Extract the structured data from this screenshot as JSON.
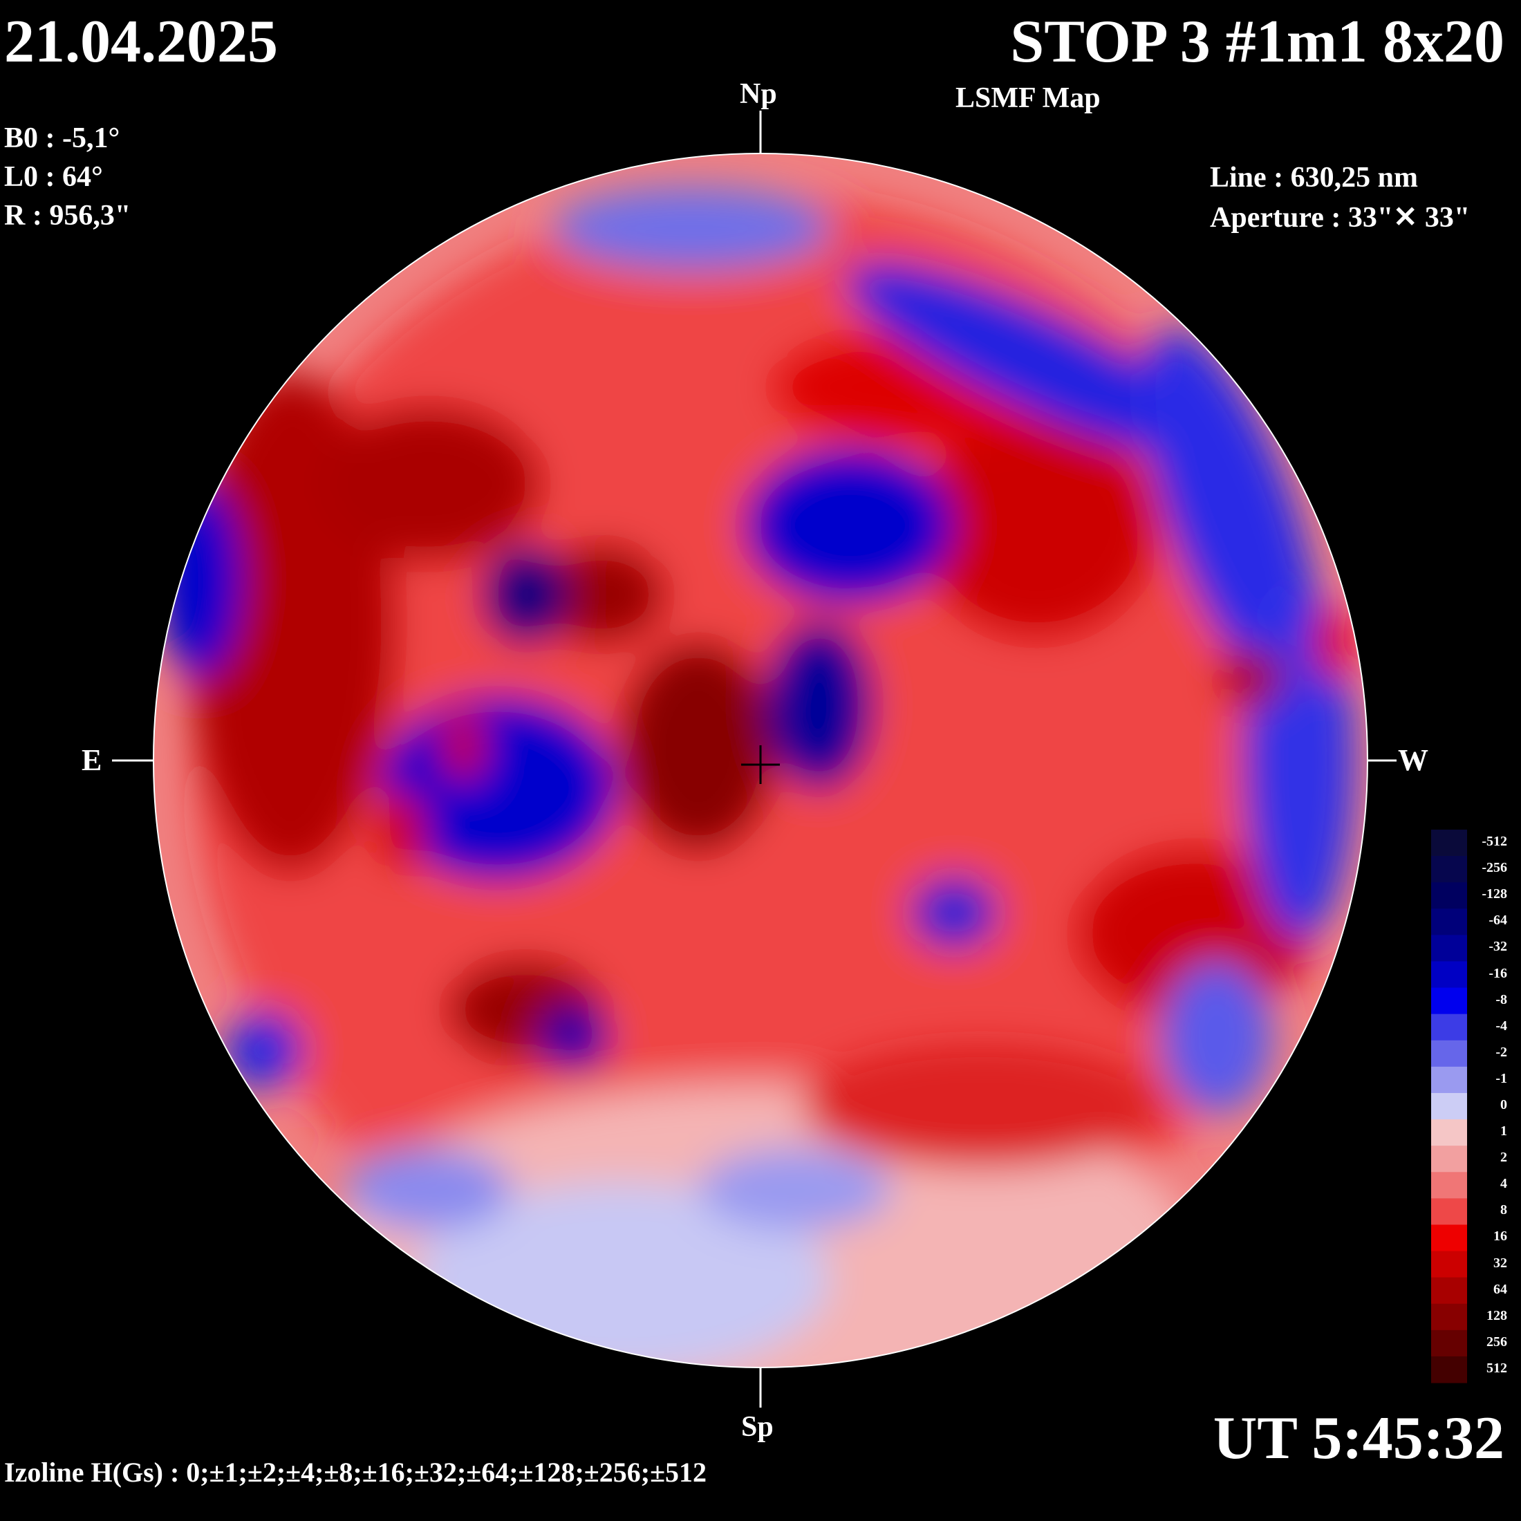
{
  "header": {
    "date": "21.04.2025",
    "title": "STOP 3 #1m1 8x20",
    "subtitle": "LSMF  Map"
  },
  "parameters": [
    "B0 : -5,1°",
    "L0 : 64°",
    "R  : 956,3\""
  ],
  "instrument": {
    "line": "Line :  630,25 nm",
    "aperture": "Aperture : 33\"✕ 33\""
  },
  "directions": {
    "north": "Np",
    "south": "Sp",
    "east": "E",
    "west": "W"
  },
  "time": "UT 5:45:32",
  "izoline": "Izoline H(Gs) : 0;±1;±2;±4;±8;±16;±32;±64;±128;±256;±512",
  "colorbar": {
    "labels": [
      "-512",
      "-256",
      "-128",
      "-64",
      "-32",
      "-16",
      "-8",
      "-4",
      "-2",
      "-1",
      "0",
      "1",
      "2",
      "4",
      "8",
      "16",
      "32",
      "64",
      "128",
      "256",
      "512"
    ],
    "colors": [
      "#0a0a3a",
      "#06064e",
      "#000060",
      "#00007a",
      "#000099",
      "#0000c4",
      "#0000ee",
      "#3c3ce6",
      "#6666ea",
      "#9a9af0",
      "#cccdf5",
      "#f5c6c6",
      "#f2a0a0",
      "#f07676",
      "#ee4848",
      "#ee0000",
      "#cc0000",
      "#a80000",
      "#880000",
      "#660000",
      "#440000"
    ]
  },
  "polarity_colors": {
    "positive": "#e00000",
    "negative": "#0000e0",
    "zero_line": "#ffffff"
  }
}
